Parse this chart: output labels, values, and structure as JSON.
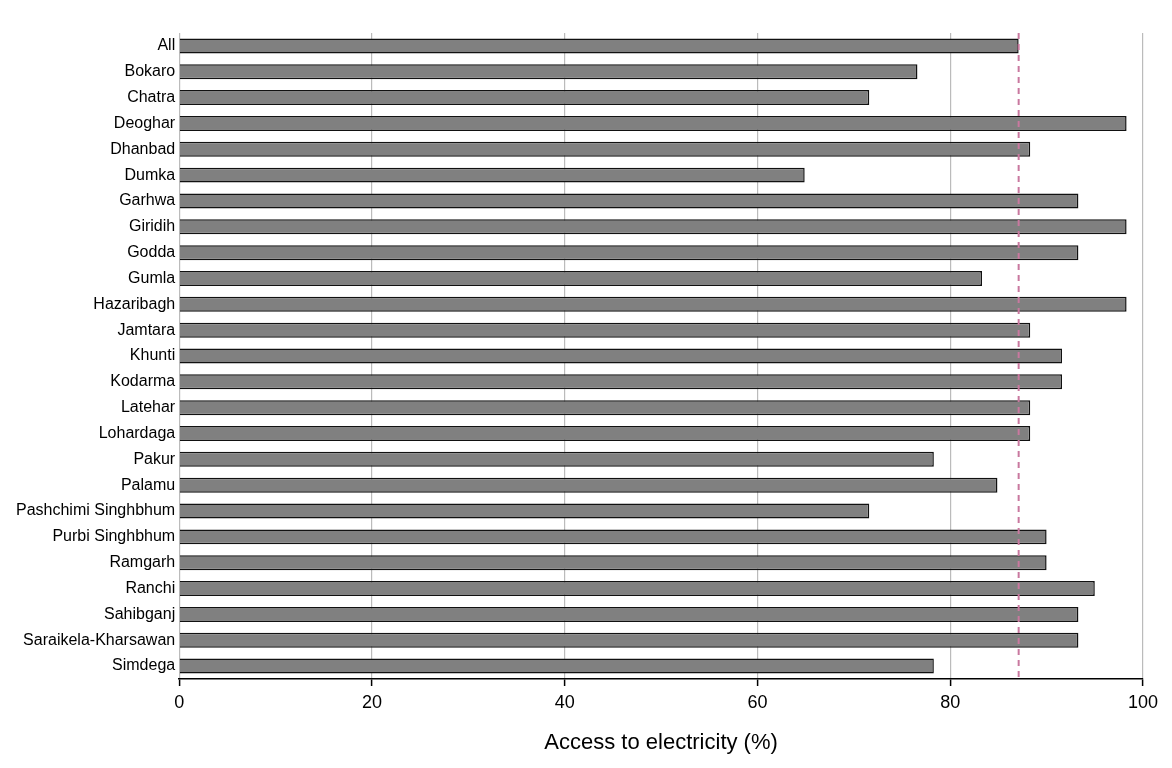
{
  "chart_data": {
    "type": "bar",
    "orientation": "horizontal",
    "xlabel": "Access to electricity (%)",
    "categories": [
      "All",
      "Bokaro",
      "Chatra",
      "Deoghar",
      "Dhanbad",
      "Dumka",
      "Garhwa",
      "Giridih",
      "Godda",
      "Gumla",
      "Hazaribagh",
      "Jamtara",
      "Khunti",
      "Kodarma",
      "Latehar",
      "Lohardaga",
      "Pakur",
      "Palamu",
      "Pashchimi Singhbhum",
      "Purbi Singhbhum",
      "Ramgarh",
      "Ranchi",
      "Sahibganj",
      "Saraikela-Kharsawan",
      "Simdega"
    ],
    "values": [
      87.1,
      76.6,
      71.6,
      98.3,
      88.3,
      64.9,
      93.3,
      98.3,
      93.3,
      83.3,
      98.3,
      88.3,
      91.6,
      91.6,
      88.3,
      88.3,
      78.3,
      84.9,
      71.6,
      90.0,
      90.0,
      95.0,
      93.3,
      93.3,
      78.3
    ],
    "color": "#808080",
    "xlim": [
      0,
      100
    ],
    "xticks": [
      0,
      20,
      40,
      60,
      80,
      100
    ],
    "grid": "x",
    "legend": false,
    "ref_lines": [
      {
        "axis": "x",
        "value": 87.1,
        "color": "#c9789f",
        "line_style": "dashed"
      }
    ]
  }
}
